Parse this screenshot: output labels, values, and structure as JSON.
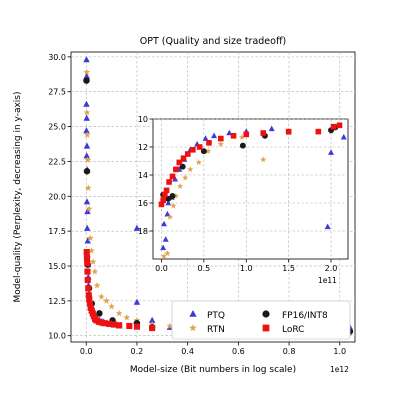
{
  "chart_data": [
    {
      "type": "scatter",
      "title": "OPT (Quality and size tradeoff)",
      "xlabel": "Model-size (Bit numbers in log scale)",
      "ylabel": "Model-quality (Perplexity, decreasing in y-axis)",
      "x_offset_label": "1e12",
      "xlim": [
        -0.06,
        1.06
      ],
      "ylim": [
        30.35,
        9.55
      ],
      "y_inverted": true,
      "x_ticks": [
        0.0,
        0.2,
        0.4,
        0.6,
        0.8,
        1.0
      ],
      "x_tick_labels": [
        "0.0",
        "0.2",
        "0.4",
        "0.6",
        "0.8",
        "1.0"
      ],
      "y_ticks": [
        10.0,
        12.5,
        15.0,
        17.5,
        20.0,
        22.5,
        25.0,
        27.5,
        30.0
      ],
      "y_tick_labels": [
        "10.0",
        "12.5",
        "15.0",
        "17.5",
        "20.0",
        "22.5",
        "25.0",
        "27.5",
        "30.0"
      ],
      "grid": true,
      "legend_position": "lower-right",
      "series": [
        {
          "name": "PTQ",
          "marker": "triangle",
          "color": "#3b3bd6",
          "points": [
            [
              0.001,
              29.8
            ],
            [
              0.002,
              28.6
            ],
            [
              0.001,
              26.6
            ],
            [
              0.002,
              25.6
            ],
            [
              0.001,
              24.7
            ],
            [
              0.003,
              23.6
            ],
            [
              0.002,
              22.9
            ],
            [
              0.004,
              21.9
            ],
            [
              0.003,
              19.6
            ],
            [
              0.005,
              18.9
            ],
            [
              0.004,
              17.7
            ],
            [
              0.006,
              16.8
            ],
            [
              0.005,
              15.8
            ],
            [
              0.007,
              15.1
            ],
            [
              0.008,
              14.2
            ],
            [
              0.009,
              13.6
            ],
            [
              0.011,
              13.0
            ],
            [
              0.014,
              12.5
            ],
            [
              0.017,
              12.1
            ],
            [
              0.021,
              11.8
            ],
            [
              0.026,
              11.6
            ],
            [
              0.033,
              11.4
            ],
            [
              0.041,
              11.2
            ],
            [
              0.052,
              11.1
            ],
            [
              0.066,
              11.0
            ],
            [
              0.083,
              10.9
            ],
            [
              0.104,
              10.8
            ],
            [
              0.13,
              10.7
            ],
            [
              0.2,
              17.7
            ],
            [
              0.2,
              12.4
            ],
            [
              0.26,
              11.1
            ],
            [
              0.33,
              10.6
            ],
            [
              0.52,
              10.5
            ],
            [
              1.04,
              10.6
            ]
          ]
        },
        {
          "name": "RTN",
          "marker": "star",
          "color": "#e0a44e",
          "points": [
            [
              0.002,
              28.9
            ],
            [
              0.003,
              26.0
            ],
            [
              0.004,
              24.4
            ],
            [
              0.006,
              22.6
            ],
            [
              0.008,
              20.6
            ],
            [
              0.011,
              19.1
            ],
            [
              0.016,
              17.0
            ],
            [
              0.021,
              16.1
            ],
            [
              0.027,
              15.3
            ],
            [
              0.034,
              14.6
            ],
            [
              0.043,
              13.6
            ],
            [
              0.06,
              12.8
            ],
            [
              0.08,
              12.5
            ],
            [
              0.1,
              12.1
            ],
            [
              0.13,
              11.6
            ],
            [
              0.16,
              11.3
            ],
            [
              0.2,
              11.1
            ],
            [
              0.26,
              10.8
            ],
            [
              0.33,
              10.7
            ],
            [
              0.52,
              10.5
            ],
            [
              1.04,
              10.4
            ]
          ]
        },
        {
          "name": "FP16/INT8",
          "marker": "circle",
          "color": "#1a1a1a",
          "points": [
            [
              0.001,
              28.3
            ],
            [
              0.003,
              21.8
            ],
            [
              0.006,
              15.1
            ],
            [
              0.011,
              13.4
            ],
            [
              0.022,
              12.3
            ],
            [
              0.052,
              11.6
            ],
            [
              0.104,
              11.1
            ],
            [
              0.2,
              10.9
            ],
            [
              0.26,
              10.6
            ],
            [
              0.52,
              10.3
            ],
            [
              1.04,
              10.3
            ]
          ]
        },
        {
          "name": "LoRC",
          "marker": "square",
          "color": "#ee1111",
          "points": [
            [
              0.002,
              16.0
            ],
            [
              0.003,
              15.6
            ],
            [
              0.004,
              15.2
            ],
            [
              0.005,
              14.6
            ],
            [
              0.006,
              14.0
            ],
            [
              0.008,
              13.4
            ],
            [
              0.01,
              12.9
            ],
            [
              0.012,
              12.6
            ],
            [
              0.015,
              12.3
            ],
            [
              0.018,
              12.0
            ],
            [
              0.022,
              11.8
            ],
            [
              0.026,
              11.6
            ],
            [
              0.03,
              11.4
            ],
            [
              0.035,
              11.2
            ],
            [
              0.04,
              11.1
            ],
            [
              0.05,
              11.0
            ],
            [
              0.06,
              10.95
            ],
            [
              0.07,
              10.9
            ],
            [
              0.09,
              10.85
            ],
            [
              0.11,
              10.8
            ],
            [
              0.13,
              10.75
            ],
            [
              0.17,
              10.7
            ],
            [
              0.2,
              10.65
            ],
            [
              0.26,
              10.55
            ]
          ]
        }
      ]
    },
    {
      "type": "scatter",
      "title": "",
      "x_offset_label": "1e11",
      "xlim": [
        -0.1,
        2.2
      ],
      "ylim": [
        10.0,
        20.0
      ],
      "y_inverted": true,
      "x_ticks": [
        0.0,
        0.5,
        1.0,
        1.5,
        2.0
      ],
      "x_tick_labels": [
        "0.0",
        "0.5",
        "1.0",
        "1.5",
        "2.0"
      ],
      "y_ticks": [
        10,
        12,
        14,
        16,
        18
      ],
      "y_tick_labels": [
        "10",
        "12",
        "14",
        "16",
        "18"
      ],
      "grid": true,
      "series": [
        {
          "name": "PTQ",
          "marker": "triangle",
          "color": "#3b3bd6",
          "points": [
            [
              0.02,
              19.2
            ],
            [
              0.05,
              18.6
            ],
            [
              0.03,
              17.5
            ],
            [
              0.07,
              16.8
            ],
            [
              0.08,
              16.0
            ],
            [
              0.12,
              15.6
            ],
            [
              0.16,
              14.3
            ],
            [
              0.21,
              13.6
            ],
            [
              0.27,
              12.9
            ],
            [
              0.34,
              12.2
            ],
            [
              0.42,
              11.8
            ],
            [
              0.52,
              11.4
            ],
            [
              0.62,
              11.2
            ],
            [
              0.8,
              11.0
            ],
            [
              1.0,
              10.9
            ],
            [
              1.3,
              10.7
            ],
            [
              1.96,
              17.7
            ],
            [
              2.0,
              12.4
            ],
            [
              2.15,
              11.3
            ]
          ]
        },
        {
          "name": "RTN",
          "marker": "star",
          "color": "#e0a44e",
          "points": [
            [
              0.03,
              19.8
            ],
            [
              0.07,
              19.6
            ],
            [
              0.1,
              17.0
            ],
            [
              0.14,
              16.2
            ],
            [
              0.17,
              15.5
            ],
            [
              0.22,
              14.8
            ],
            [
              0.28,
              14.2
            ],
            [
              0.34,
              13.6
            ],
            [
              0.44,
              13.1
            ],
            [
              0.55,
              12.3
            ],
            [
              0.7,
              11.8
            ],
            [
              0.95,
              11.3
            ],
            [
              1.2,
              12.9
            ],
            [
              1.5,
              11.0
            ],
            [
              2.0,
              10.9
            ]
          ]
        },
        {
          "name": "FP16/INT8",
          "marker": "circle",
          "color": "#1a1a1a",
          "points": [
            [
              0.02,
              15.4
            ],
            [
              0.08,
              15.7
            ],
            [
              0.13,
              15.5
            ],
            [
              0.25,
              13.4
            ],
            [
              0.5,
              12.3
            ],
            [
              0.96,
              11.9
            ],
            [
              1.22,
              11.2
            ],
            [
              2.0,
              10.8
            ],
            [
              2.05,
              10.6
            ]
          ]
        },
        {
          "name": "LoRC",
          "marker": "square",
          "color": "#ee1111",
          "points": [
            [
              0.0,
              16.1
            ],
            [
              0.02,
              15.8
            ],
            [
              0.04,
              15.4
            ],
            [
              0.06,
              15.1
            ],
            [
              0.09,
              14.5
            ],
            [
              0.13,
              14.1
            ],
            [
              0.17,
              13.6
            ],
            [
              0.21,
              13.1
            ],
            [
              0.26,
              12.8
            ],
            [
              0.31,
              12.5
            ],
            [
              0.37,
              12.2
            ],
            [
              0.45,
              12.0
            ],
            [
              0.56,
              11.7
            ],
            [
              0.7,
              11.4
            ],
            [
              0.85,
              11.2
            ],
            [
              1.0,
              11.1
            ],
            [
              1.2,
              11.0
            ],
            [
              1.5,
              10.9
            ],
            [
              1.85,
              10.9
            ],
            [
              2.03,
              10.55
            ],
            [
              2.1,
              10.45
            ]
          ]
        }
      ]
    }
  ],
  "legend": {
    "entries": [
      {
        "label": "PTQ",
        "marker": "triangle",
        "color": "#3b3bd6"
      },
      {
        "label": "FP16/INT8",
        "marker": "circle",
        "color": "#1a1a1a"
      },
      {
        "label": "RTN",
        "marker": "star",
        "color": "#e0a44e"
      },
      {
        "label": "LoRC",
        "marker": "square",
        "color": "#ee1111"
      }
    ]
  }
}
